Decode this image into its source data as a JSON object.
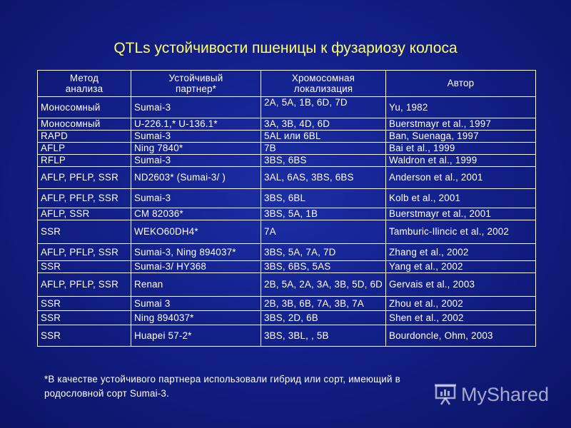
{
  "title": "QTLs устойчивости пшеницы к фузариозу колоса",
  "table": {
    "headers": [
      "Метод\nанализа",
      "Устойчивый\nпартнер*",
      "Хромосомная\nлокализация",
      "Автор"
    ],
    "rows": [
      [
        "Моносомный",
        "Sumai-3",
        "2A, 5A, 1B, 6D, 7D",
        "Yu, 1982"
      ],
      [
        "Моносомный",
        "U-226.1,* U-136.1*",
        "3A, 3B, 4D, 6D",
        "Buerstmayr et al., 1997"
      ],
      [
        "RAPD",
        "Sumai-3",
        "5AL или 6BL",
        "Ban, Suenaga, 1997"
      ],
      [
        "AFLP",
        "Ning 7840*",
        "7B",
        "Bai et al., 1999"
      ],
      [
        "RFLP",
        "Sumai-3",
        "3BS, 6BS",
        "Waldron et al., 1999"
      ],
      [
        "AFLP, PFLP, SSR",
        "ND2603* (Sumai-3/ )",
        "3AL, 6AS, 3BS, 6BS",
        "Anderson et al., 2001"
      ],
      [
        "AFLP, PFLP, SSR",
        "Sumai-3",
        "3BS, 6BL",
        "Kolb et al., 2001"
      ],
      [
        "AFLP, SSR",
        "CM 82036*",
        "3BS, 5A, 1B",
        "Buerstmayr et al., 2001"
      ],
      [
        "SSR",
        "WEKO60DH4*",
        "7A",
        "Tamburic-Ilincic et al., 2002"
      ],
      [
        "AFLP, PFLP, SSR",
        "Sumai-3, Ning 894037*",
        "3BS, 5A, 7A, 7D",
        "Zhang et al., 2002"
      ],
      [
        "SSR",
        "Sumai-3/ HY368",
        "3BS, 6BS, 5AS",
        "Yang et al., 2002"
      ],
      [
        "AFLP, PFLP, SSR",
        "Renan",
        "2B, 5A, 2A, 3A, 3B, 5D, 6D",
        "Gervais et al., 2003"
      ],
      [
        "SSR",
        "Sumai 3",
        "2B, 3B, 6B, 7A, 3B, 7A",
        "Zhou et al., 2002"
      ],
      [
        "SSR",
        "Ning 894037*",
        "3BS, 2D, 6B",
        " Shen et al., 2002"
      ],
      [
        "SSR",
        "Huapei 57-2*",
        "3BS, 3BL, , 5B",
        "Bourdoncle, Ohm, 2003"
      ]
    ]
  },
  "note": "*В качестве устойчивого партнера использовали гибрид или сорт, имеющий в родословной сорт Sumai-3.",
  "watermark": "MyShared",
  "colors": {
    "background": "#13208a",
    "title": "#ffff66",
    "text": "#ffffff"
  }
}
